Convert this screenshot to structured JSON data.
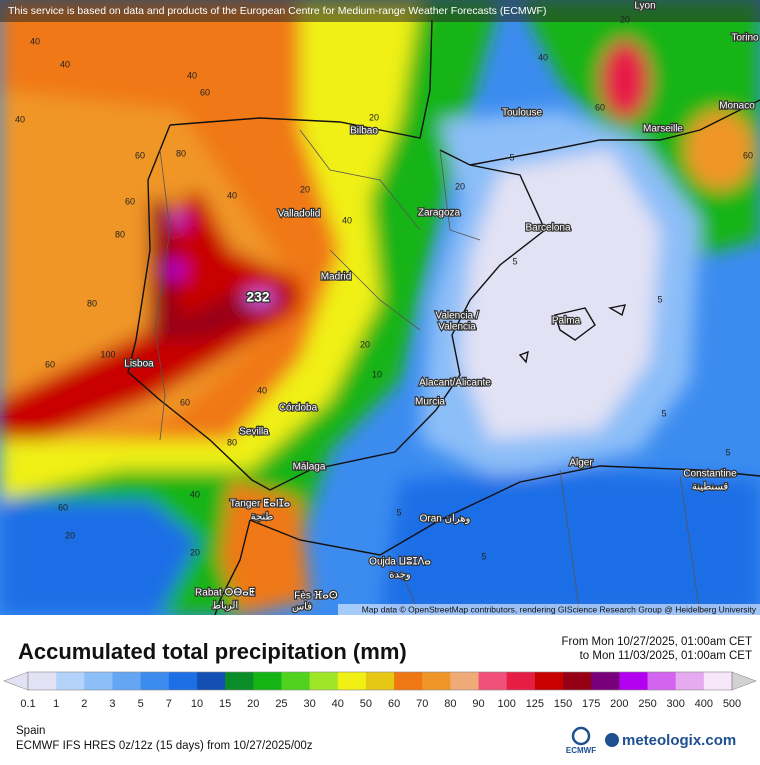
{
  "banner": "This service is based on data and products of the European Centre for Medium-range Weather Forecasts (ECMWF)",
  "attribution": "Map data © OpenStreetMap contributors, rendering GIScience Research Group @ Heidelberg University",
  "max_label": "232",
  "cities": [
    "Lyon",
    "Torino",
    "Toulouse",
    "Monaco",
    "Bilbao",
    "Marseille",
    "Valladolid",
    "Zaragoza",
    "Barcelona",
    "Madrid",
    "Valencia /",
    "Valencia",
    "Palma",
    "Lisboa",
    "Alacant/Alicante",
    "Murcia",
    "Córdoba",
    "Sevilla",
    "Alger",
    "Málaga",
    "Constantine",
    "قسنطينة",
    "Tanger ⵟⴰⵏⵊⴰ",
    "طنجة",
    "Oran وهران",
    "Oujda ⵡⵓⵊⴷⴰ",
    "وجدة",
    "Rabat ⵔⴱⴰⵟ",
    "الرباط",
    "Fès ⴼⴰⵙ",
    "فاس"
  ],
  "contour_labels": [
    40,
    40,
    60,
    40,
    20,
    60,
    80,
    40,
    60,
    80,
    40,
    20,
    40,
    80,
    100,
    60,
    60,
    80,
    40,
    20,
    20,
    60,
    40,
    5,
    5,
    5,
    5,
    5,
    20,
    60,
    60,
    40,
    20,
    5,
    5,
    10,
    20
  ],
  "title": "Accumulated total precipitation (mm)",
  "period_from": "From Mon 10/27/2025, 01:00am CET",
  "period_to": "to Mon 11/03/2025, 01:00am CET",
  "legend": {
    "ticks": [
      0.1,
      1,
      2,
      3,
      5,
      7,
      10,
      15,
      20,
      25,
      30,
      40,
      50,
      60,
      70,
      80,
      90,
      100,
      125,
      150,
      175,
      200,
      250,
      300,
      400,
      500
    ],
    "colors": [
      "#e2e2f4",
      "#b4d2fa",
      "#8cbef8",
      "#64a6f4",
      "#3c8cf0",
      "#1e6ee6",
      "#1450b4",
      "#0a8c28",
      "#14b414",
      "#50d21e",
      "#a0e628",
      "#f0f014",
      "#e6c814",
      "#f07814",
      "#f09628",
      "#f0aa78",
      "#f05078",
      "#e61e46",
      "#c80000",
      "#960014",
      "#78007a",
      "#b400f0",
      "#d264f0",
      "#e6aaf0",
      "#f5e6fa",
      "#d2d2d2"
    ]
  },
  "region": "Spain",
  "model": "ECMWF IFS HRES 0z/12z (15 days) from  10/27/2025/00z",
  "logo_ecmwf": "ECMWF",
  "logo_site": "meteologix.com"
}
